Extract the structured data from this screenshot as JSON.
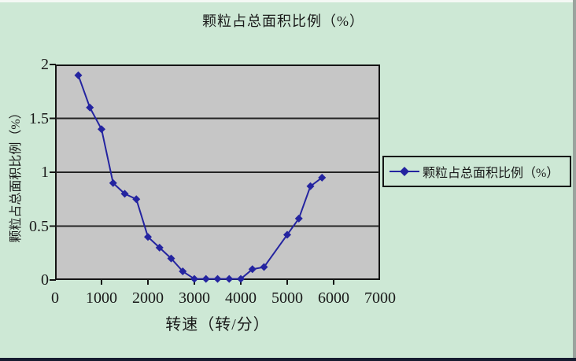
{
  "chart": {
    "title": "颗粒占总面积比例（%）",
    "y_axis": {
      "title": "颗粒占总面积比例（%）"
    },
    "x_axis": {
      "title": "转速（转/分）"
    },
    "legend": {
      "label": "颗粒占总面积比例（%）"
    }
  },
  "colors": {
    "page_bg": "#cde8d5",
    "plot_bg": "#c6c6c6",
    "series_line": "#2424a0",
    "grid": "#242424",
    "axis": "#141414",
    "text": "#1a1a1a"
  },
  "chart_data": {
    "type": "line",
    "title": "颗粒占总面积比例（%）",
    "xlabel": "转速（转/分）",
    "ylabel": "颗粒占总面积比例（%）",
    "legend_entries": [
      "颗粒占总面积比例（%）"
    ],
    "legend_position": "right",
    "grid": true,
    "xlim": [
      0,
      7000
    ],
    "ylim": [
      0,
      2
    ],
    "x_ticks": [
      0,
      1000,
      2000,
      3000,
      4000,
      5000,
      6000,
      7000
    ],
    "y_ticks": [
      0,
      0.5,
      1,
      1.5,
      2
    ],
    "series": [
      {
        "name": "颗粒占总面积比例（%）",
        "marker": "diamond",
        "color": "#2424a0",
        "x": [
          500,
          750,
          1000,
          1250,
          1500,
          1750,
          2000,
          2250,
          2500,
          2750,
          3000,
          3250,
          3500,
          3750,
          4000,
          4250,
          4500,
          5000,
          5250,
          5500,
          5750
        ],
        "y": [
          1.9,
          1.6,
          1.4,
          0.9,
          0.8,
          0.75,
          0.4,
          0.3,
          0.2,
          0.08,
          0.01,
          0.01,
          0.01,
          0.01,
          0.01,
          0.1,
          0.12,
          0.42,
          0.57,
          0.87,
          0.95
        ]
      }
    ]
  }
}
